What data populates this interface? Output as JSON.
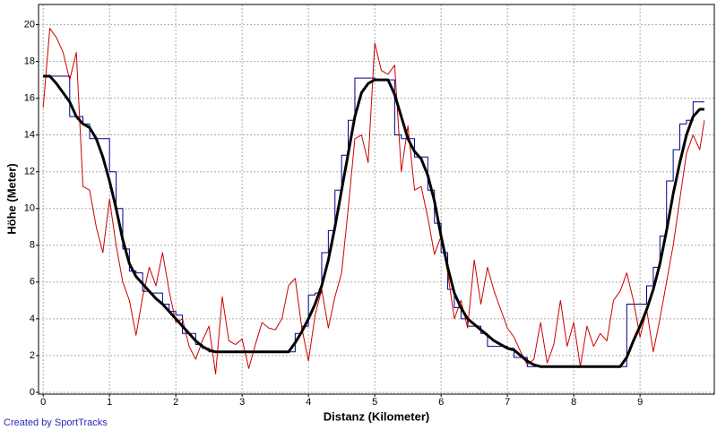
{
  "chart_data": {
    "type": "line",
    "x_label": "Distanz (Kilometer)",
    "y_label": "Höhe (Meter)",
    "credit": "Created by SportTracks",
    "x": [
      0,
      0.1,
      0.2,
      0.3,
      0.4,
      0.5,
      0.6,
      0.7,
      0.8,
      0.9,
      1,
      1.1,
      1.2,
      1.3,
      1.4,
      1.5,
      1.6,
      1.7,
      1.8,
      1.9,
      2,
      2.1,
      2.2,
      2.3,
      2.4,
      2.5,
      2.6,
      2.7,
      2.8,
      2.9,
      3,
      3.1,
      3.2,
      3.3,
      3.4,
      3.5,
      3.6,
      3.7,
      3.8,
      3.9,
      4,
      4.1,
      4.2,
      4.3,
      4.4,
      4.5,
      4.6,
      4.7,
      4.8,
      4.9,
      5,
      5.1,
      5.2,
      5.3,
      5.4,
      5.5,
      5.6,
      5.7,
      5.8,
      5.9,
      6,
      6.1,
      6.2,
      6.3,
      6.4,
      6.5,
      6.6,
      6.7,
      6.8,
      6.9,
      7,
      7.1,
      7.2,
      7.3,
      7.4,
      7.5,
      7.6,
      7.7,
      7.8,
      7.9,
      8,
      8.1,
      8.2,
      8.3,
      8.4,
      8.5,
      8.6,
      8.7,
      8.8,
      8.9,
      9,
      9.1,
      9.2,
      9.3,
      9.4,
      9.5,
      9.6,
      9.7,
      9.8,
      9.9,
      9.97
    ],
    "series": [
      {
        "color": "#00008b",
        "line_width": 1,
        "step": true,
        "values": [
          17.2,
          17.2,
          17.2,
          17.2,
          15.0,
          15.0,
          14.6,
          13.8,
          13.8,
          13.8,
          12.0,
          10.0,
          7.8,
          6.6,
          6.5,
          5.5,
          5.4,
          5.4,
          4.8,
          4.4,
          4.2,
          3.2,
          3.2,
          2.6,
          2.4,
          2.2,
          2.2,
          2.2,
          2.2,
          2.2,
          2.2,
          2.2,
          2.2,
          2.2,
          2.2,
          2.2,
          2.2,
          2.2,
          3.2,
          3.6,
          5.3,
          5.4,
          7.6,
          8.8,
          11.0,
          12.9,
          14.8,
          17.1,
          17.1,
          17.1,
          17.0,
          17.0,
          17.0,
          14.0,
          13.8,
          13.8,
          12.8,
          12.8,
          11.0,
          9.2,
          7.6,
          5.6,
          4.6,
          4.0,
          3.6,
          3.6,
          3.2,
          2.5,
          2.5,
          2.5,
          2.4,
          1.9,
          1.9,
          1.4,
          1.4,
          1.4,
          1.4,
          1.4,
          1.4,
          1.4,
          1.4,
          1.4,
          1.4,
          1.4,
          1.4,
          1.4,
          1.4,
          1.4,
          4.8,
          4.8,
          4.8,
          5.8,
          6.8,
          8.5,
          11.5,
          13.2,
          14.6,
          14.8,
          15.8,
          15.8,
          15.8
        ]
      },
      {
        "color": "#cc0000",
        "line_width": 1,
        "step": false,
        "values": [
          15.5,
          19.8,
          19.3,
          18.5,
          17.0,
          18.5,
          11.2,
          11.0,
          9.0,
          7.6,
          10.5,
          8.0,
          6.0,
          5.0,
          3.1,
          5.2,
          6.8,
          5.8,
          7.6,
          5.5,
          3.8,
          4.0,
          2.5,
          1.8,
          2.8,
          3.6,
          1.0,
          5.2,
          2.8,
          2.6,
          2.9,
          1.3,
          2.6,
          3.8,
          3.5,
          3.4,
          4.0,
          5.8,
          6.2,
          3.5,
          1.7,
          4.2,
          5.6,
          3.5,
          5.2,
          6.5,
          10.0,
          13.8,
          14.0,
          12.5,
          19.0,
          17.5,
          17.3,
          17.8,
          12.0,
          14.5,
          11.0,
          11.2,
          9.5,
          7.5,
          8.5,
          6.5,
          4.0,
          5.0,
          3.5,
          7.2,
          4.8,
          6.8,
          5.5,
          4.5,
          3.5,
          3.0,
          2.2,
          1.5,
          1.8,
          3.8,
          1.6,
          2.6,
          5.0,
          2.5,
          3.8,
          1.4,
          3.6,
          2.5,
          3.2,
          2.8,
          5.0,
          5.5,
          6.5,
          5.0,
          3.0,
          4.5,
          2.2,
          4.0,
          6.0,
          8.0,
          10.5,
          13.0,
          14.0,
          13.2,
          14.8
        ]
      },
      {
        "color": "#000000",
        "line_width": 3,
        "step": false,
        "values": [
          17.2,
          17.2,
          16.8,
          16.3,
          15.8,
          15.0,
          14.6,
          14.4,
          13.8,
          12.8,
          11.5,
          10.0,
          8.3,
          7.0,
          6.3,
          5.9,
          5.5,
          5.1,
          4.8,
          4.4,
          4.0,
          3.6,
          3.2,
          2.8,
          2.5,
          2.3,
          2.2,
          2.2,
          2.2,
          2.2,
          2.2,
          2.2,
          2.2,
          2.2,
          2.2,
          2.2,
          2.2,
          2.2,
          2.7,
          3.3,
          4.0,
          4.8,
          5.8,
          7.2,
          9.0,
          11.0,
          13.0,
          15.0,
          16.3,
          16.8,
          17.0,
          17.0,
          17.0,
          16.2,
          15.0,
          13.8,
          13.1,
          12.7,
          11.8,
          10.4,
          8.5,
          6.8,
          5.4,
          4.6,
          4.0,
          3.7,
          3.4,
          3.1,
          2.8,
          2.6,
          2.4,
          2.3,
          2.0,
          1.7,
          1.5,
          1.4,
          1.4,
          1.4,
          1.4,
          1.4,
          1.4,
          1.4,
          1.4,
          1.4,
          1.4,
          1.4,
          1.4,
          1.4,
          1.9,
          2.8,
          3.6,
          4.5,
          5.6,
          7.0,
          8.8,
          10.8,
          12.5,
          14.0,
          15.0,
          15.4,
          15.4
        ]
      }
    ],
    "xlim": [
      -0.07,
      10.12
    ],
    "ylim": [
      -0.1,
      21.1
    ],
    "xticks": [
      0,
      1,
      2,
      3,
      4,
      5,
      6,
      7,
      8,
      9
    ],
    "yticks": [
      0,
      2,
      4,
      6,
      8,
      10,
      12,
      14,
      16,
      18,
      20
    ],
    "grid": true
  }
}
